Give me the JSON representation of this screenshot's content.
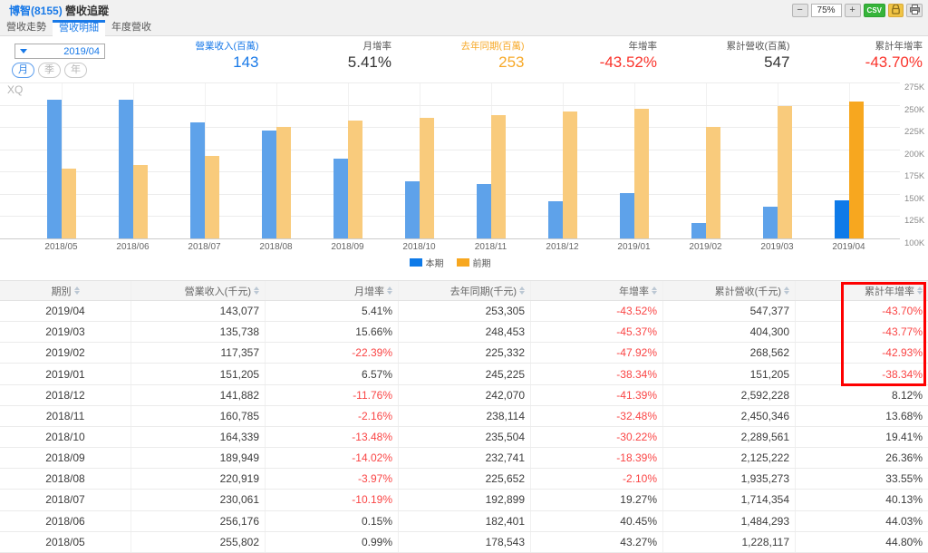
{
  "header": {
    "stock": "博智(8155)",
    "title": "營收追蹤"
  },
  "toolbar": {
    "zoom_out": "−",
    "zoom_level": "75%",
    "zoom_in": "+",
    "csv_label": "CSV",
    "lock_icon": "lock-icon",
    "print_icon": "printer-icon"
  },
  "tabs": [
    {
      "label": "營收走勢",
      "active": false
    },
    {
      "label": "營收明細",
      "active": true
    },
    {
      "label": "年度營收",
      "active": false
    }
  ],
  "period": {
    "selected": "2019/04",
    "modes": [
      {
        "label": "月",
        "active": true
      },
      {
        "label": "季",
        "active": false
      },
      {
        "label": "年",
        "active": false
      }
    ]
  },
  "colors": {
    "accent_blue": "#1879e8",
    "accent_orange": "#f7a928",
    "stat_red": "#fa332b",
    "table_red": "#fa4545",
    "bar_blue": "#5ea2ea",
    "bar_orange": "#f9cb7c",
    "bar_blue_highlight": "#0e7ae8",
    "bar_orange_highlight": "#f7a71f",
    "annotation_red": "#fe0000"
  },
  "stats": [
    {
      "label": "營業收入(百萬)",
      "value": "143",
      "label_color": "#1879e8",
      "value_color": "#1879e8"
    },
    {
      "label": "月增率",
      "value": "5.41%",
      "label_color": "#555555",
      "value_color": "#333333"
    },
    {
      "label": "去年同期(百萬)",
      "value": "253",
      "label_color": "#f7a928",
      "value_color": "#f7a928"
    },
    {
      "label": "年增率",
      "value": "-43.52%",
      "label_color": "#555555",
      "value_color": "#fa332b"
    },
    {
      "label": "累計營收(百萬)",
      "value": "547",
      "label_color": "#555555",
      "value_color": "#333333"
    },
    {
      "label": "累計年增率",
      "value": "-43.70%",
      "label_color": "#555555",
      "value_color": "#fa332b"
    }
  ],
  "chart_data": {
    "type": "bar",
    "watermark": "XQ",
    "categories": [
      "2018/05",
      "2018/06",
      "2018/07",
      "2018/08",
      "2018/09",
      "2018/10",
      "2018/11",
      "2018/12",
      "2019/01",
      "2019/02",
      "2019/03",
      "2019/04"
    ],
    "series": [
      {
        "name": "本期",
        "values": [
          255802,
          256176,
          230061,
          220919,
          189949,
          164339,
          160785,
          141882,
          151205,
          117357,
          135738,
          143077
        ]
      },
      {
        "name": "前期",
        "values": [
          178543,
          182401,
          192899,
          225652,
          232741,
          235504,
          238114,
          242070,
          245225,
          225332,
          248453,
          253305
        ]
      }
    ],
    "ylim": [
      100000,
      275000
    ],
    "yticks": [
      "275K",
      "250K",
      "225K",
      "200K",
      "175K",
      "150K",
      "125K",
      "100K"
    ],
    "highlight_index": 11,
    "legend_position": "bottom",
    "grid": true
  },
  "table": {
    "columns": [
      "期別",
      "營業收入(千元)",
      "月增率",
      "去年同期(千元)",
      "年增率",
      "累計營收(千元)",
      "累計年增率"
    ],
    "rows": [
      [
        "2019/04",
        "143,077",
        "5.41%",
        "253,305",
        "-43.52%",
        "547,377",
        "-43.70%"
      ],
      [
        "2019/03",
        "135,738",
        "15.66%",
        "248,453",
        "-45.37%",
        "404,300",
        "-43.77%"
      ],
      [
        "2019/02",
        "117,357",
        "-22.39%",
        "225,332",
        "-47.92%",
        "268,562",
        "-42.93%"
      ],
      [
        "2019/01",
        "151,205",
        "6.57%",
        "245,225",
        "-38.34%",
        "151,205",
        "-38.34%"
      ],
      [
        "2018/12",
        "141,882",
        "-11.76%",
        "242,070",
        "-41.39%",
        "2,592,228",
        "8.12%"
      ],
      [
        "2018/11",
        "160,785",
        "-2.16%",
        "238,114",
        "-32.48%",
        "2,450,346",
        "13.68%"
      ],
      [
        "2018/10",
        "164,339",
        "-13.48%",
        "235,504",
        "-30.22%",
        "2,289,561",
        "19.41%"
      ],
      [
        "2018/09",
        "189,949",
        "-14.02%",
        "232,741",
        "-18.39%",
        "2,125,222",
        "26.36%"
      ],
      [
        "2018/08",
        "220,919",
        "-3.97%",
        "225,652",
        "-2.10%",
        "1,935,273",
        "33.55%"
      ],
      [
        "2018/07",
        "230,061",
        "-10.19%",
        "192,899",
        "19.27%",
        "1,714,354",
        "40.13%"
      ],
      [
        "2018/06",
        "256,176",
        "0.15%",
        "182,401",
        "40.45%",
        "1,484,293",
        "44.03%"
      ],
      [
        "2018/05",
        "255,802",
        "0.99%",
        "178,543",
        "43.27%",
        "1,228,117",
        "44.80%"
      ]
    ]
  }
}
